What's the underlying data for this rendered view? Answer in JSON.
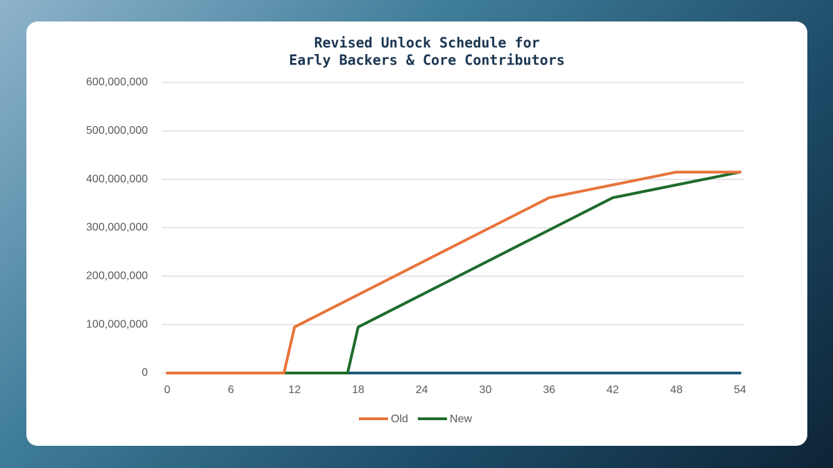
{
  "chart_data": {
    "type": "line",
    "title": [
      "Revised Unlock Schedule for",
      "Early Backers & Core Contributors"
    ],
    "series": [
      {
        "name": "Old",
        "color": "#e8743b",
        "x": [
          0,
          11,
          12,
          36,
          48,
          54
        ],
        "values": [
          0,
          0,
          95000000,
          362000000,
          415000000,
          415000000
        ]
      },
      {
        "name": "New",
        "color": "#1e6b2b",
        "x": [
          0,
          17,
          18,
          42,
          54
        ],
        "values": [
          0,
          0,
          95000000,
          362000000,
          415000000
        ]
      },
      {
        "color": "#1f5a7a",
        "x": [
          17,
          54
        ],
        "values": [
          0,
          0
        ]
      }
    ],
    "xlim": [
      0,
      54
    ],
    "xticks": [
      0,
      6,
      12,
      18,
      24,
      30,
      36,
      42,
      48,
      54
    ],
    "ylim": [
      0,
      600000000
    ],
    "yticks": [
      0,
      {
        "value": 100000000,
        "label": "100,000,000"
      },
      {
        "value": 200000000,
        "label": "200,000,000"
      },
      {
        "value": 300000000,
        "label": "300,000,000"
      },
      {
        "value": 400000000,
        "label": "400,000,000"
      },
      {
        "value": 500000000,
        "label": "500,000,000"
      },
      {
        "value": 600000000,
        "label": "600,000,000"
      }
    ],
    "grid": true,
    "legend": "bottom"
  }
}
